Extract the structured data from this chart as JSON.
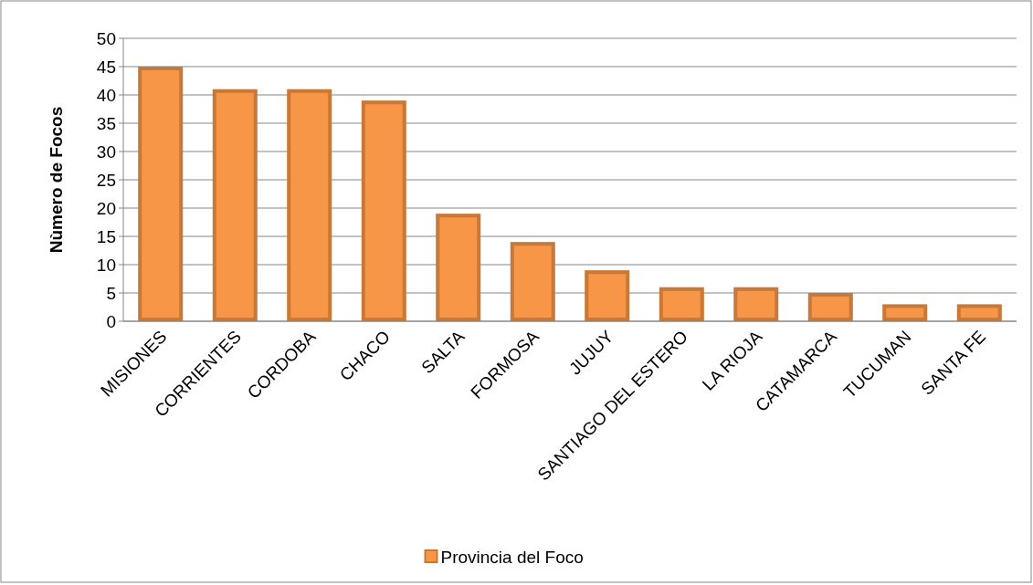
{
  "chart_data": {
    "type": "bar",
    "ylabel": "Nùmero de Focos",
    "categories": [
      "MISIONES",
      "CORRIENTES",
      "CORDOBA",
      "CHACO",
      "SALTA",
      "FORMOSA",
      "JUJUY",
      "SANTIAGO DEL ESTERO",
      "LA RIOJA",
      "CATAMARCA",
      "TUCUMAN",
      "SANTA FE"
    ],
    "series": [
      {
        "name": "Provincia del Foco",
        "color": "#f79646",
        "values": [
          45,
          41,
          41,
          39,
          19,
          14,
          9,
          6,
          6,
          5,
          3,
          3
        ]
      }
    ],
    "ylim": [
      0,
      50
    ],
    "yticks": [
      0,
      5,
      10,
      15,
      20,
      25,
      30,
      35,
      40,
      45,
      50
    ],
    "grid": "y",
    "legend": "bottom"
  }
}
